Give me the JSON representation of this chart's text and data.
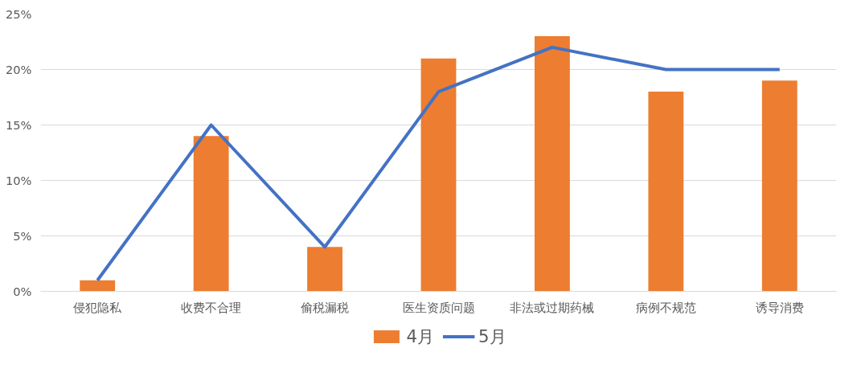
{
  "chart_data": {
    "type": "bar",
    "categories": [
      "侵犯隐私",
      "收费不合理",
      "偷税漏税",
      "医生资质问题",
      "非法或过期药械",
      "病例不规范",
      "诱导消费"
    ],
    "series": [
      {
        "name": "4月",
        "color": "#ed7d31",
        "values": [
          1,
          14,
          4,
          21,
          23,
          18,
          19
        ]
      },
      {
        "name": "5月",
        "type": "line",
        "color": "#4472c4",
        "values": [
          1,
          15,
          4,
          18,
          22,
          20,
          20
        ]
      }
    ],
    "ylim": [
      0,
      25
    ],
    "yticks": [
      {
        "value": 0,
        "label": "0%"
      },
      {
        "value": 5,
        "label": "5%"
      },
      {
        "value": 10,
        "label": "10%"
      },
      {
        "value": 15,
        "label": "15%"
      },
      {
        "value": 20,
        "label": "20%"
      },
      {
        "value": 25,
        "label": "25%"
      }
    ],
    "grid": "y",
    "legend": "bottom"
  }
}
